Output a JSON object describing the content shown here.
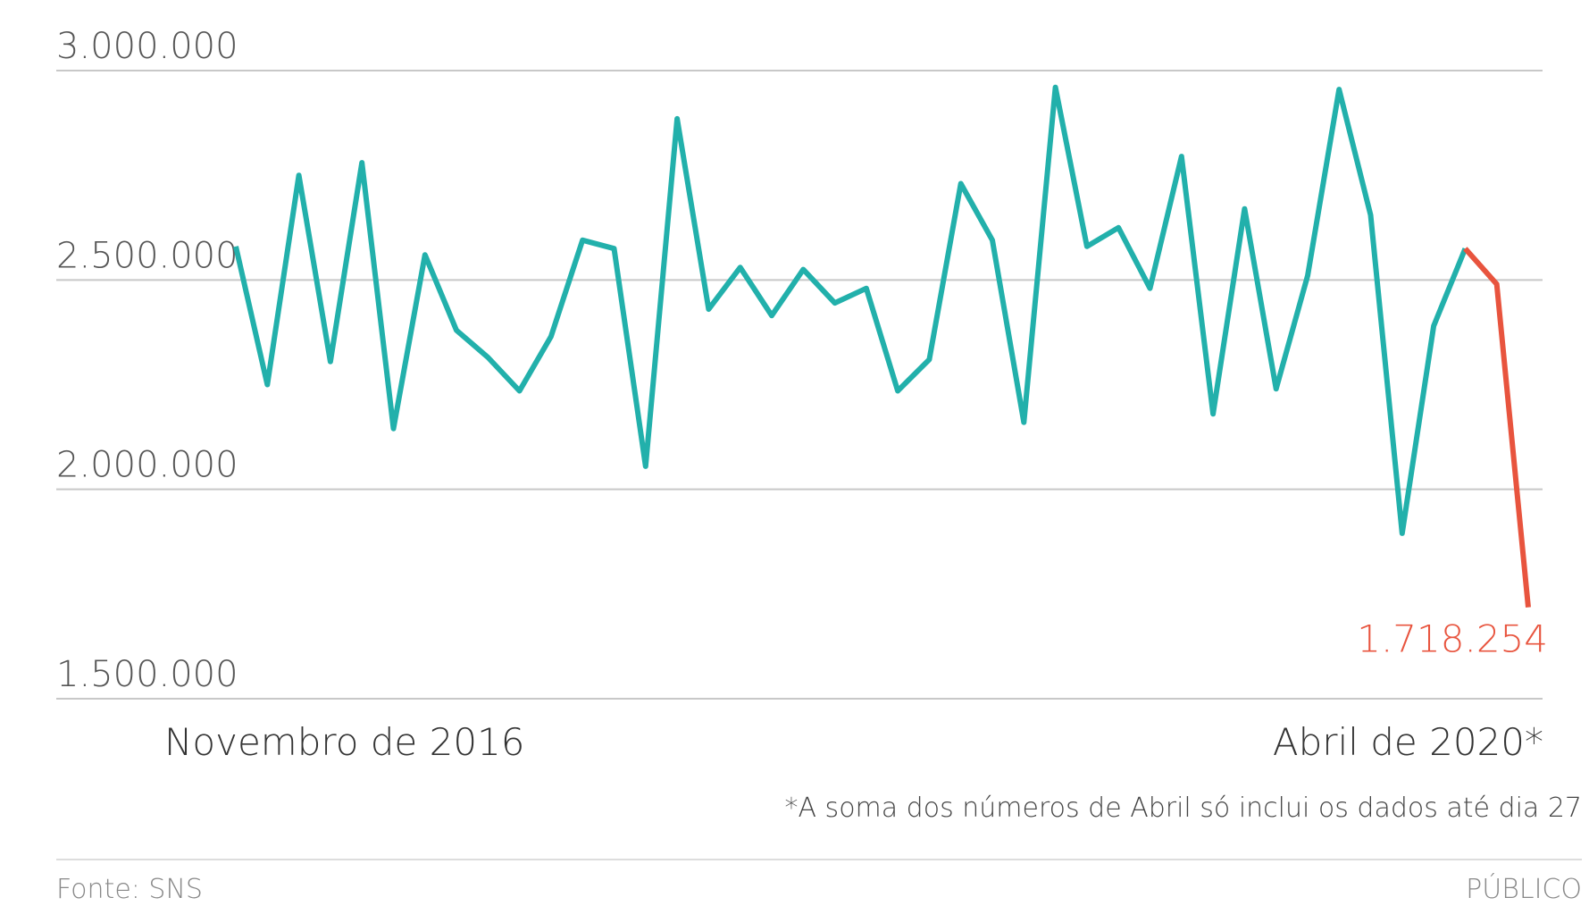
{
  "chart_data": {
    "type": "line",
    "categories": [
      "Novembro de 2016",
      null,
      null,
      null,
      null,
      null,
      null,
      null,
      null,
      null,
      null,
      null,
      null,
      null,
      null,
      null,
      null,
      null,
      null,
      null,
      null,
      null,
      null,
      null,
      null,
      null,
      null,
      null,
      null,
      null,
      null,
      null,
      null,
      null,
      null,
      null,
      null,
      null,
      null,
      null,
      null,
      "Abril de 2020*"
    ],
    "series": [
      {
        "color": "#22b0ab",
        "values": [
          2580000,
          2250000,
          2750000,
          2305000,
          2780000,
          2145000,
          2560000,
          2380000,
          2315000,
          2235000,
          2365000,
          2595000,
          2575000,
          2055000,
          2885000,
          2430000,
          2530000,
          2415000,
          2525000,
          2445000,
          2480000,
          2235000,
          2310000,
          2730000,
          2595000,
          2160000,
          2960000,
          2580000,
          2625000,
          2480000,
          2795000,
          2180000,
          2670000,
          2240000,
          2510000,
          2955000,
          2655000,
          1895000,
          2390000,
          2575000,
          null,
          null
        ]
      },
      {
        "color": "#e8543e",
        "values": [
          null,
          null,
          null,
          null,
          null,
          null,
          null,
          null,
          null,
          null,
          null,
          null,
          null,
          null,
          null,
          null,
          null,
          null,
          null,
          null,
          null,
          null,
          null,
          null,
          null,
          null,
          null,
          null,
          null,
          null,
          null,
          null,
          null,
          null,
          null,
          null,
          null,
          null,
          null,
          2575000,
          2490000,
          1718254
        ],
        "value_labels": [
          null,
          null,
          null,
          null,
          null,
          null,
          null,
          null,
          null,
          null,
          null,
          null,
          null,
          null,
          null,
          null,
          null,
          null,
          null,
          null,
          null,
          null,
          null,
          null,
          null,
          null,
          null,
          null,
          null,
          null,
          null,
          null,
          null,
          null,
          null,
          null,
          null,
          null,
          null,
          null,
          null,
          "1.718.254"
        ]
      }
    ],
    "ylim": [
      1500000,
      3000000
    ],
    "yticks": [
      {
        "value": 1500000,
        "label": "1.500.000"
      },
      {
        "value": 2000000,
        "label": "2.000.000"
      },
      {
        "value": 2500000,
        "label": "2.500.000"
      },
      {
        "value": 3000000,
        "label": "3.000.000"
      }
    ],
    "grid": true,
    "footnote": "*A soma dos números de Abril só inclui os dados até dia 27",
    "source": "Fonte: SNS",
    "brand": "PÚBLICO"
  }
}
